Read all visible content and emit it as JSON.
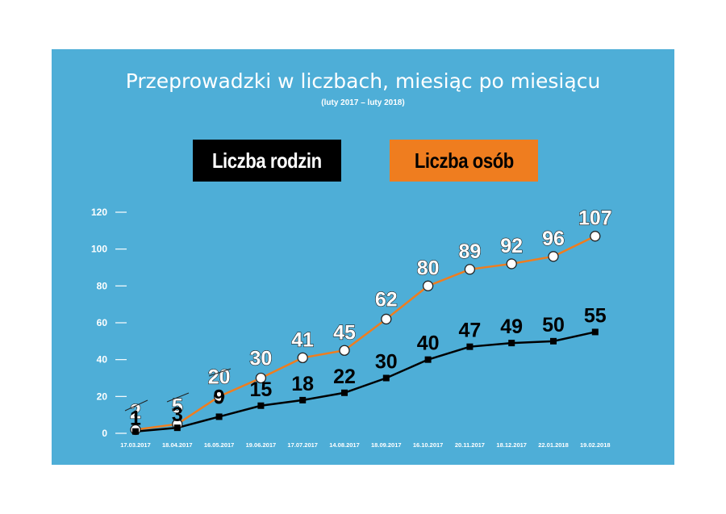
{
  "chart_data": {
    "type": "line",
    "title": "Przeprowadzki w liczbach, miesiąc po miesiącu",
    "subtitle": "(luty 2017 – luty 2018)",
    "categories": [
      "17.03.2017",
      "18.04.2017",
      "16.05.2017",
      "19.06.2017",
      "17.07.2017",
      "14.08.2017",
      "18.09.2017",
      "16.10.2017",
      "20.11.2017",
      "18.12.2017",
      "22.01.2018",
      "19.02.2018"
    ],
    "series": [
      {
        "name": "Liczba rodzin",
        "values": [
          1,
          3,
          9,
          15,
          18,
          22,
          30,
          40,
          47,
          49,
          50,
          55
        ],
        "color": "#000000",
        "marker": "square"
      },
      {
        "name": "Liczba osób",
        "values": [
          2,
          5,
          20,
          30,
          41,
          45,
          62,
          80,
          89,
          92,
          96,
          107
        ],
        "color": "#ef7d1f",
        "marker": "circle"
      }
    ],
    "yticks": [
      "0",
      "20",
      "40",
      "60",
      "80",
      "100",
      "120"
    ],
    "ylim": [
      0,
      120
    ],
    "xlabel": "",
    "ylabel": "",
    "legend_position": "top",
    "grid": false,
    "background_color": "#4eaed7"
  }
}
